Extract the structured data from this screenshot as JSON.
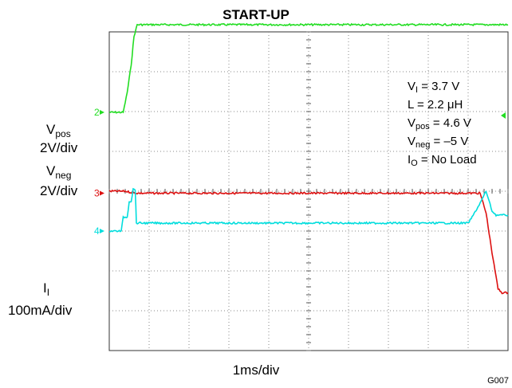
{
  "chart_data": {
    "type": "line",
    "title": "START-UP",
    "xlabel": "1ms/div",
    "code": "G007",
    "x_divisions": 10,
    "y_divisions": 8,
    "x_unit": "ms",
    "channels": [
      {
        "id": "2",
        "name": "Vpos",
        "label_main": "V",
        "label_sub": "pos",
        "scale": "2V/div",
        "color": "#22dd22",
        "marker": "2",
        "baseline_div": 2.02,
        "x": [
          0,
          0.35,
          0.45,
          0.55,
          0.62,
          0.7,
          10
        ],
        "y": [
          0,
          0,
          0.5,
          1.2,
          1.9,
          2.2,
          2.2
        ]
      },
      {
        "id": "3",
        "name": "Vneg",
        "label_main": "V",
        "label_sub": "neg",
        "scale": "2V/div",
        "color": "#dd1111",
        "marker": "3",
        "baseline_div": 4.05,
        "x": [
          0,
          0.4,
          0.55,
          0.7,
          9.3,
          9.45,
          9.6,
          9.75,
          9.85,
          10
        ],
        "y": [
          0.05,
          0.05,
          0.02,
          0,
          0,
          -0.5,
          -1.5,
          -2.4,
          -2.5,
          -2.5
        ]
      },
      {
        "id": "4",
        "name": "II",
        "label_main": "I",
        "label_sub": "I",
        "scale": "100mA/div",
        "color": "#00dddd",
        "marker": "4",
        "baseline_div": 5.0,
        "x": [
          0,
          0.3,
          0.35,
          0.45,
          0.5,
          0.55,
          0.6,
          0.65,
          0.68,
          9.0,
          9.1,
          9.3,
          9.45,
          9.6,
          9.7,
          9.8,
          10
        ],
        "y": [
          0,
          0,
          0.35,
          0.35,
          0.75,
          0.75,
          1.05,
          1.05,
          0.2,
          0.2,
          0.35,
          0.7,
          1.0,
          0.5,
          0.4,
          0.4,
          0.4
        ]
      }
    ],
    "annotations": [
      {
        "main": "V",
        "sub": "I",
        "rest": " = 3.7 V"
      },
      {
        "main": "L = 2.2 ",
        "sub": "",
        "rest": "μH"
      },
      {
        "main": "V",
        "sub": "pos",
        "rest": " = 4.6 V"
      },
      {
        "main": "V",
        "sub": "neg",
        "rest": " = –5 V"
      },
      {
        "main": "I",
        "sub": "O",
        "rest": " = No Load"
      }
    ]
  }
}
